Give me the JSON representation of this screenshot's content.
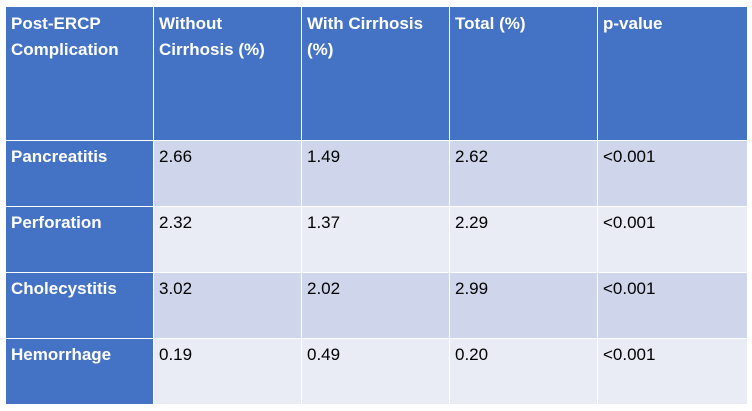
{
  "table": {
    "headers": [
      "Post-ERCP Complication",
      "Without Cirrhosis (%)",
      "With Cirrhosis (%)",
      "Total (%)",
      "p-value"
    ],
    "rows": [
      {
        "label": "Pancreatitis",
        "cells": [
          "2.66",
          "1.49",
          "2.62",
          "<0.001"
        ]
      },
      {
        "label": "Perforation",
        "cells": [
          "2.32",
          "1.37",
          "2.29",
          "<0.001"
        ]
      },
      {
        "label": "Cholecystitis",
        "cells": [
          "3.02",
          "2.02",
          "2.99",
          "<0.001"
        ]
      },
      {
        "label": "Hemorrhage",
        "cells": [
          "0.19",
          "0.49",
          "0.20",
          "<0.001"
        ]
      }
    ]
  },
  "colors": {
    "header": "#4472c4",
    "band_dark": "#cfd5ea",
    "band_light": "#e9ebf5"
  }
}
